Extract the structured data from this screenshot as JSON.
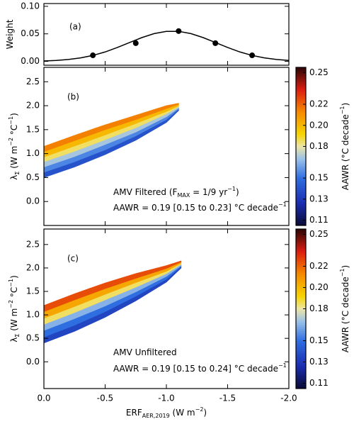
{
  "chart_data": [
    {
      "type": "line",
      "panel_label": "(a)",
      "ylabel_parts": [
        "Weight"
      ],
      "ylim": [
        -0.007,
        0.105
      ],
      "yticks": [
        {
          "value": 0,
          "label": "0.00"
        },
        {
          "value": 0.05,
          "label": "0.05"
        },
        {
          "value": 0.1,
          "label": "0.10"
        }
      ],
      "color": "#000000",
      "line": {
        "x": [
          0,
          -0.1,
          -0.2,
          -0.3,
          -0.4,
          -0.5,
          -0.6,
          -0.7,
          -0.8,
          -0.9,
          -1.0,
          -1.1,
          -1.2,
          -1.3,
          -1.4,
          -1.5,
          -1.6,
          -1.7,
          -1.8,
          -1.9,
          -2.0
        ],
        "values": [
          0.0008,
          0.0017,
          0.0034,
          0.0063,
          0.0108,
          0.0171,
          0.0252,
          0.0343,
          0.0432,
          0.0504,
          0.0545,
          0.0545,
          0.0504,
          0.0432,
          0.0343,
          0.0252,
          0.0171,
          0.0108,
          0.0063,
          0.0034,
          0.0017
        ]
      },
      "points": {
        "x": [
          -0.4,
          -0.75,
          -1.1,
          -1.4,
          -1.7
        ],
        "values": [
          0.011,
          0.033,
          0.055,
          0.033,
          0.011
        ]
      }
    },
    {
      "type": "band",
      "panel_label": "(b)",
      "ylabel_parts": [
        "λ",
        "Σ",
        " (W m",
        "−2",
        " °C",
        "−1",
        ")"
      ],
      "ylim": [
        -0.5,
        2.8
      ],
      "yticks": [
        {
          "value": 0,
          "label": "0.0"
        },
        0.5,
        {
          "value": 1,
          "label": "1.0"
        },
        1.5,
        {
          "value": 2,
          "label": "2.0"
        },
        2.5
      ],
      "x": [
        0,
        -0.25,
        -0.5,
        -0.75,
        -1.0,
        -1.1
      ],
      "boundaries": [
        [
          0.5,
          0.72,
          0.98,
          1.28,
          1.65,
          1.9
        ],
        [
          0.61,
          0.83,
          1.08,
          1.37,
          1.71,
          1.93
        ],
        [
          0.72,
          0.94,
          1.19,
          1.45,
          1.77,
          1.95
        ],
        [
          0.83,
          1.05,
          1.29,
          1.54,
          1.83,
          1.98
        ],
        [
          0.93,
          1.16,
          1.39,
          1.63,
          1.88,
          2.0
        ],
        [
          1.04,
          1.27,
          1.5,
          1.71,
          1.94,
          2.03
        ],
        [
          1.15,
          1.38,
          1.6,
          1.8,
          2.0,
          2.05
        ]
      ],
      "band_values": [
        0.14,
        0.155,
        0.17,
        0.185,
        0.2,
        0.215
      ],
      "annotation_1_parts": [
        "AMV Filtered (F",
        "MAX",
        " = 1/9 yr",
        "−1",
        ")"
      ],
      "annotation_2_parts": [
        "AAWR = 0.19 [0.15 to 0.23] °C decade",
        "−1"
      ],
      "colorbar": {
        "label_parts": [
          "AAWR (°C decade",
          "−1",
          ")"
        ],
        "lim": [
          0.105,
          0.255
        ],
        "ticks": [
          0.11,
          0.13,
          0.15,
          0.18,
          {
            "value": 0.2,
            "label": "0.20"
          },
          0.22,
          0.25
        ]
      }
    },
    {
      "type": "band",
      "panel_label": "(c)",
      "ylabel_parts": [
        "λ",
        "Σ",
        " (W m",
        "−2",
        " °C",
        "−1",
        ")"
      ],
      "ylim": [
        -0.57,
        2.83
      ],
      "yticks": [
        {
          "value": 0,
          "label": "0.0"
        },
        0.5,
        {
          "value": 1,
          "label": "1.0"
        },
        1.5,
        {
          "value": 2,
          "label": "2.0"
        },
        2.5
      ],
      "x": [
        0,
        -0.25,
        -0.5,
        -0.75,
        -1.0,
        -1.12
      ],
      "boundaries": [
        [
          0.4,
          0.65,
          0.95,
          1.3,
          1.7,
          2.0
        ],
        [
          0.53,
          0.78,
          1.07,
          1.4,
          1.76,
          2.03
        ],
        [
          0.67,
          0.92,
          1.19,
          1.49,
          1.82,
          2.05
        ],
        [
          0.8,
          1.05,
          1.32,
          1.59,
          1.88,
          2.08
        ],
        [
          0.93,
          1.18,
          1.44,
          1.69,
          1.93,
          2.1
        ],
        [
          1.07,
          1.32,
          1.56,
          1.78,
          1.99,
          2.13
        ],
        [
          1.2,
          1.45,
          1.68,
          1.88,
          2.05,
          2.15
        ]
      ],
      "band_values": [
        0.135,
        0.15,
        0.165,
        0.185,
        0.205,
        0.225
      ],
      "annotation_1_parts": [
        "AMV Unfiltered"
      ],
      "annotation_2_parts": [
        "AAWR = 0.19 [0.15 to 0.24] °C decade",
        "−1"
      ],
      "colorbar": {
        "label_parts": [
          "AAWR (°C decade",
          "−1",
          ")"
        ],
        "lim": [
          0.105,
          0.255
        ],
        "ticks": [
          0.11,
          0.13,
          0.15,
          0.18,
          {
            "value": 0.2,
            "label": "0.20"
          },
          0.22,
          0.25
        ]
      }
    }
  ],
  "x_axis": {
    "label_parts": [
      "ERF",
      "AER,2019",
      " (W m",
      "−2",
      ")"
    ],
    "xlim": [
      0,
      -2.0
    ],
    "xticks": [
      {
        "value": 0,
        "label": "0.0"
      },
      -0.5,
      {
        "value": -1,
        "label": "-1.0"
      },
      -1.5,
      {
        "value": -2,
        "label": "-2.0"
      }
    ]
  }
}
